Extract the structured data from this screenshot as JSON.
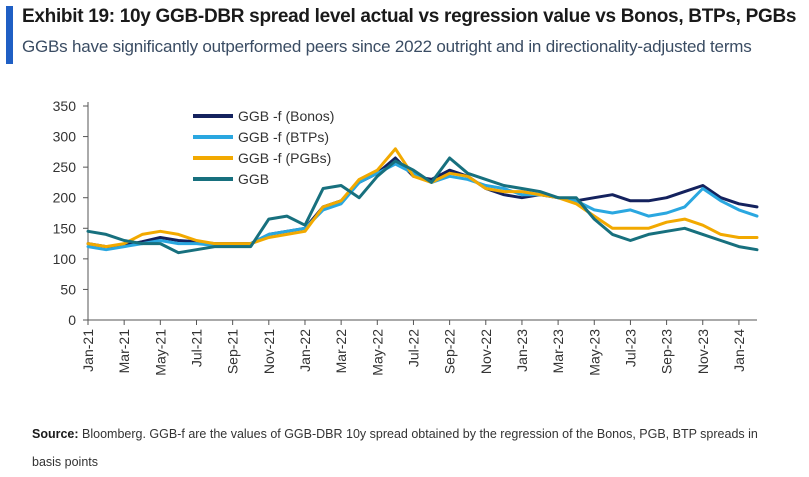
{
  "header": {
    "title": "Exhibit 19: 10y GGB-DBR spread level actual vs regression value vs Bonos, BTPs, PGBs",
    "subtitle": "GGBs have significantly outperformed peers since 2022 outright and in directionality-adjusted terms"
  },
  "footer": {
    "source_label": "Source:",
    "source_text": "Bloomberg. GGB-f are the values of GGB-DBR 10y spread obtained by the regression of the Bonos, PGB, BTP spreads in basis points"
  },
  "colors": {
    "accent": "#1f5fc4"
  },
  "chart_data": {
    "type": "line",
    "title": "",
    "xlabel": "",
    "ylabel": "",
    "ylim": [
      0,
      350
    ],
    "yticks": [
      0,
      50,
      100,
      150,
      200,
      250,
      300,
      350
    ],
    "xticks": [
      "Jan-21",
      "Mar-21",
      "May-21",
      "Jul-21",
      "Sep-21",
      "Nov-21",
      "Jan-22",
      "Mar-22",
      "May-22",
      "Jul-22",
      "Sep-22",
      "Nov-22",
      "Jan-23",
      "Mar-23",
      "May-23",
      "Jul-23",
      "Sep-23",
      "Nov-23",
      "Jan-24"
    ],
    "grid": false,
    "legend_position": "top-left",
    "x": [
      "Jan-21",
      "Feb-21",
      "Mar-21",
      "Apr-21",
      "May-21",
      "Jun-21",
      "Jul-21",
      "Aug-21",
      "Sep-21",
      "Oct-21",
      "Nov-21",
      "Dec-21",
      "Jan-22",
      "Feb-22",
      "Mar-22",
      "Apr-22",
      "May-22",
      "Jun-22",
      "Jul-22",
      "Aug-22",
      "Sep-22",
      "Oct-22",
      "Nov-22",
      "Dec-22",
      "Jan-23",
      "Feb-23",
      "Mar-23",
      "Apr-23",
      "May-23",
      "Jun-23",
      "Jul-23",
      "Aug-23",
      "Sep-23",
      "Oct-23",
      "Nov-23",
      "Dec-23",
      "Jan-24",
      "Feb-24"
    ],
    "series": [
      {
        "name": "GGB  -f (Bonos)",
        "color": "#14225e",
        "values": [
          125,
          120,
          122,
          128,
          135,
          130,
          128,
          125,
          125,
          125,
          140,
          145,
          150,
          185,
          195,
          225,
          240,
          265,
          235,
          230,
          245,
          235,
          215,
          205,
          200,
          205,
          200,
          195,
          200,
          205,
          195,
          195,
          200,
          210,
          220,
          200,
          190,
          185
        ]
      },
      {
        "name": "GGB  -f (BTPs)",
        "color": "#2aa7e0",
        "values": [
          120,
          115,
          120,
          125,
          130,
          125,
          125,
          122,
          122,
          125,
          140,
          145,
          150,
          180,
          190,
          225,
          240,
          255,
          240,
          225,
          235,
          230,
          220,
          215,
          205,
          205,
          200,
          195,
          180,
          175,
          180,
          170,
          175,
          185,
          215,
          195,
          180,
          170
        ]
      },
      {
        "name": "GGB  -f (PGBs)",
        "color": "#f2a900",
        "values": [
          125,
          120,
          125,
          140,
          145,
          140,
          130,
          125,
          125,
          125,
          135,
          140,
          145,
          185,
          195,
          230,
          245,
          280,
          235,
          225,
          240,
          235,
          215,
          210,
          210,
          205,
          200,
          190,
          170,
          150,
          150,
          150,
          160,
          165,
          155,
          140,
          135,
          135
        ]
      },
      {
        "name": "GGB",
        "color": "#17707e",
        "values": [
          145,
          140,
          130,
          125,
          125,
          110,
          115,
          120,
          120,
          120,
          165,
          170,
          155,
          215,
          220,
          200,
          235,
          260,
          245,
          225,
          265,
          240,
          230,
          220,
          215,
          210,
          200,
          200,
          165,
          140,
          130,
          140,
          145,
          150,
          140,
          130,
          120,
          115
        ]
      }
    ]
  }
}
